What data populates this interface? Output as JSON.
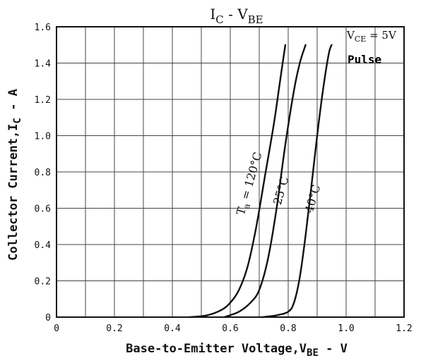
{
  "chart_data": {
    "type": "line",
    "title": {
      "main": "I",
      "main_sub": "C",
      "sep": " - V",
      "sep_sub": "BE"
    },
    "xlabel": {
      "text": "Base-to-Emitter Voltage,V",
      "sub": "BE",
      "suffix": " - V"
    },
    "ylabel": {
      "text": "Collector Current,I",
      "sub": "C",
      "suffix": " - A"
    },
    "xlim": [
      0,
      1.2
    ],
    "ylim": [
      0,
      1.6
    ],
    "x_ticks": [
      "0",
      "0.2",
      "0.4",
      "0.6",
      "0.8",
      "1.0",
      "1.2"
    ],
    "y_ticks": [
      "0",
      "0.2",
      "0.4",
      "0.6",
      "0.8",
      "1.0",
      "1.2",
      "1.4",
      "1.6"
    ],
    "grid": true,
    "annotations": {
      "condition": {
        "text": "V",
        "sub": "CE",
        "suffix": " = 5V"
      },
      "pulse": "Pulse"
    },
    "series": [
      {
        "label": {
          "text": "T",
          "sub": "a",
          "suffix": " = 120°C"
        },
        "x": [
          0.46,
          0.52,
          0.57,
          0.6,
          0.63,
          0.66,
          0.69,
          0.72,
          0.75,
          0.77,
          0.79
        ],
        "y": [
          0,
          0.01,
          0.04,
          0.08,
          0.15,
          0.28,
          0.5,
          0.78,
          1.06,
          1.28,
          1.5
        ]
      },
      {
        "label": {
          "text": "25°C"
        },
        "x": [
          0.58,
          0.63,
          0.67,
          0.7,
          0.73,
          0.76,
          0.79,
          0.82,
          0.84,
          0.86
        ],
        "y": [
          0,
          0.03,
          0.08,
          0.15,
          0.32,
          0.6,
          0.95,
          1.25,
          1.4,
          1.5
        ]
      },
      {
        "label": {
          "text": "−40°C"
        },
        "x": [
          0.71,
          0.76,
          0.8,
          0.82,
          0.84,
          0.86,
          0.88,
          0.9,
          0.92,
          0.94,
          0.95
        ],
        "y": [
          0,
          0.01,
          0.03,
          0.08,
          0.22,
          0.45,
          0.72,
          1.0,
          1.25,
          1.45,
          1.5
        ]
      }
    ]
  }
}
